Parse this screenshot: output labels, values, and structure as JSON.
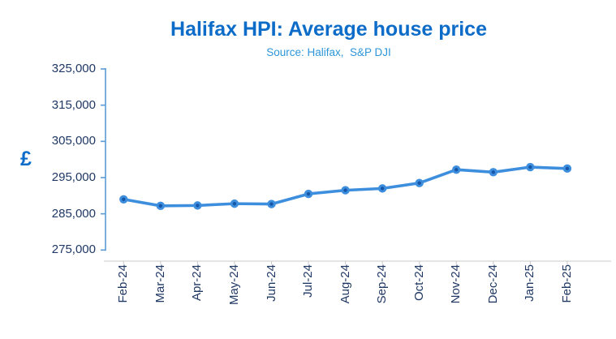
{
  "header": {
    "title": "Halifax HPI: Average house price",
    "subtitle": "Source: Halifax,  S&P DJI"
  },
  "colors": {
    "title": "#0c6cc8",
    "subtitle": "#2d96d9",
    "axis_labels": "#1f3864",
    "y_axis_line": "#5b9bd5",
    "x_axis_line": "#c9c9c9",
    "series_line": "#3e8ede",
    "marker_fill": "#3e8ede",
    "marker_core": "#1556a8",
    "pound_label": "#0c6cc8"
  },
  "chart_data": {
    "type": "line",
    "title": "Halifax HPI: Average house price",
    "subtitle": "Source: Halifax,  S&P DJI",
    "xlabel": "",
    "ylabel": "£",
    "categories": [
      "Feb-24",
      "Mar-24",
      "Apr-24",
      "May-24",
      "Jun-24",
      "Jul-24",
      "Aug-24",
      "Sep-24",
      "Oct-24",
      "Nov-24",
      "Dec-24",
      "Jan-25",
      "Feb-25"
    ],
    "series": [
      {
        "name": "Average house price",
        "values": [
          289000,
          287200,
          287300,
          287800,
          287700,
          290500,
          291500,
          292000,
          293500,
          297200,
          296500,
          297900,
          297500
        ]
      }
    ],
    "ylim": [
      275000,
      325000
    ],
    "ytick_step": 10000,
    "yticks": [
      275000,
      285000,
      295000,
      305000,
      315000,
      325000
    ],
    "ytick_labels": [
      "275,000",
      "285,000",
      "295,000",
      "305,000",
      "315,000",
      "325,000"
    ],
    "grid": false,
    "legend": false,
    "marker": "circle-with-dark-core",
    "x_labels_rotation_deg": 90
  }
}
